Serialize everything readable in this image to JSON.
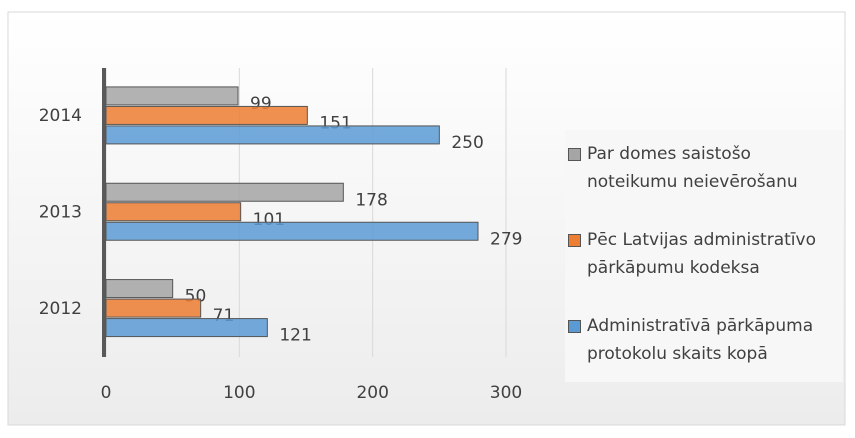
{
  "chart_data": {
    "type": "hbar",
    "categories": [
      "2012",
      "2013",
      "2014"
    ],
    "series": [
      {
        "name": "Par domes saistošo noteikumu neievērošanu",
        "color": "#a5a5a5",
        "values": [
          50,
          178,
          99
        ]
      },
      {
        "name": "Pēc Latvijas administratīvo pārkāpumu kodeksa",
        "color": "#ed7d31",
        "values": [
          71,
          101,
          151
        ]
      },
      {
        "name": "Administratīvā pārkāpuma protokolu skaits kopā",
        "color": "#5b9bd5",
        "values": [
          121,
          279,
          250
        ]
      }
    ],
    "xlim": [
      0,
      300
    ],
    "xticks": [
      0,
      100,
      200,
      300
    ],
    "grid": true,
    "legend": "right"
  }
}
